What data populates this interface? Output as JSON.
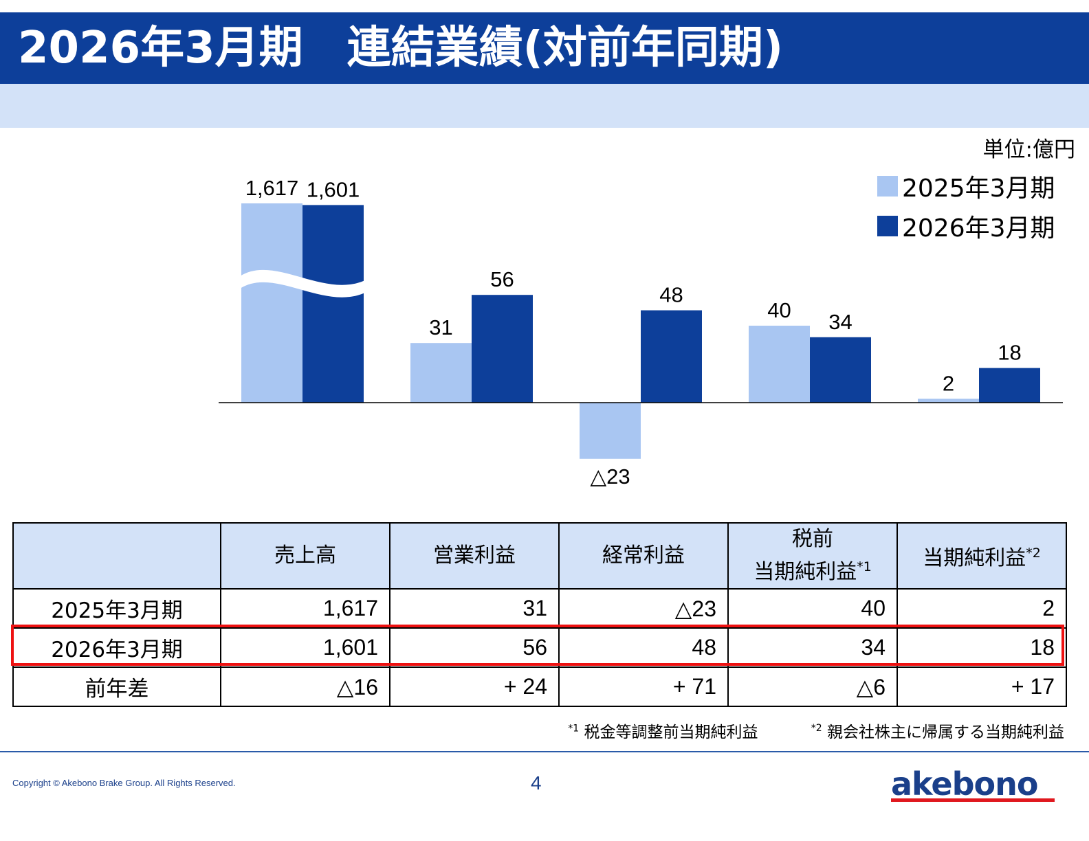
{
  "header": {
    "title": "2026年3月期　連結業績(対前年同期)",
    "unit": "単位:億円"
  },
  "legend": [
    {
      "label": "2025年3月期",
      "color": "#a9c6f2"
    },
    {
      "label": "2026年3月期",
      "color": "#0d3f9a"
    }
  ],
  "chart_data": {
    "type": "bar",
    "categories": [
      "売上高",
      "営業利益",
      "経常利益",
      "税前当期純利益",
      "当期純利益"
    ],
    "series": [
      {
        "name": "2025年3月期",
        "color": "#a9c6f2",
        "values": [
          1617,
          31,
          -23,
          40,
          2
        ],
        "labels": [
          "1,617",
          "31",
          "△23",
          "40",
          "2"
        ]
      },
      {
        "name": "2026年3月期",
        "color": "#0d3f9a",
        "values": [
          1601,
          56,
          48,
          34,
          18
        ],
        "labels": [
          "1,601",
          "56",
          "48",
          "34",
          "18"
        ]
      }
    ],
    "axis_break": true,
    "legend_position": "top-right",
    "grid": false
  },
  "table": {
    "headers": [
      "",
      "売上高",
      "営業利益",
      "経常利益",
      "税前\n当期純利益*1",
      "当期純利益*2"
    ],
    "rows": [
      [
        "2025年3月期",
        "1,617",
        "31",
        "△23",
        "40",
        "2"
      ],
      [
        "2026年3月期",
        "1,601",
        "56",
        "48",
        "34",
        "18"
      ],
      [
        "前年差",
        "△16",
        "+ 24",
        "+ 71",
        "△6",
        "+ 17"
      ]
    ],
    "highlighted_row": "2026年3月期"
  },
  "footnotes": {
    "fn1_mark": "*1",
    "fn1": "税金等調整前当期純利益",
    "fn2_mark": "*2",
    "fn2": "親会社株主に帰属する当期純利益"
  },
  "footer": {
    "copyright": "Copyright © Akebono Brake Group. All Rights Reserved.",
    "page": "4",
    "logo": "akebono"
  },
  "colors": {
    "title_bg": "#0d3f9a",
    "sub_band": "#d3e2f8",
    "highlight": "#ee1111",
    "logo_red": "#e0181e"
  }
}
